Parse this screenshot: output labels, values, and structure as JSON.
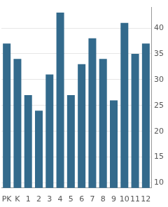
{
  "chart_data": {
    "type": "bar",
    "categories": [
      "PK",
      "K",
      "1",
      "2",
      "3",
      "4",
      "5",
      "6",
      "7",
      "8",
      "9",
      "10",
      "11",
      "12"
    ],
    "values": [
      37,
      34,
      27,
      24,
      31,
      43,
      27,
      33,
      38,
      34,
      26,
      41,
      35,
      37
    ],
    "color": "#336a8c",
    "ylim": [
      9,
      44
    ],
    "yticks": [
      10,
      15,
      20,
      25,
      30,
      35,
      40
    ],
    "grid": true
  }
}
